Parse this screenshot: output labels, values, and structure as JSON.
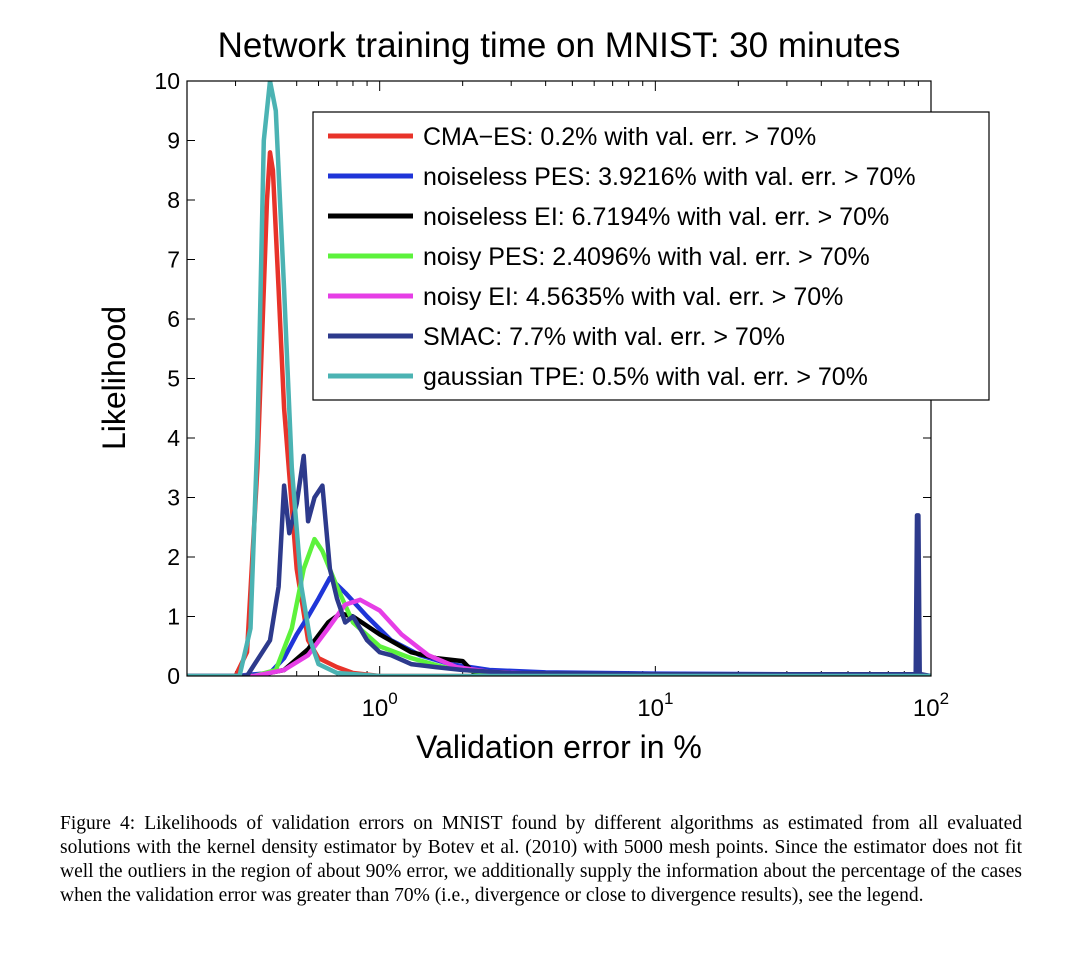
{
  "chart_data": {
    "type": "line",
    "title": "Network training time on MNIST: 30 minutes",
    "xlabel": "Validation error in %",
    "ylabel": "Likelihood",
    "xscale": "log",
    "xlim": [
      0.2,
      100
    ],
    "ylim": [
      0,
      10
    ],
    "xticks": [
      {
        "value": 1,
        "base": "10",
        "exp": "0"
      },
      {
        "value": 10,
        "base": "10",
        "exp": "1"
      },
      {
        "value": 100,
        "base": "10",
        "exp": "2"
      }
    ],
    "yticks": [
      "0",
      "1",
      "2",
      "3",
      "4",
      "5",
      "6",
      "7",
      "8",
      "9",
      "10"
    ],
    "legend_position": "top-right",
    "series": [
      {
        "name": "CMA−ES: 0.2% with val. err. > 70%",
        "color": "#e8332a",
        "x": [
          0.2,
          0.3,
          0.33,
          0.36,
          0.39,
          0.4,
          0.41,
          0.43,
          0.45,
          0.5,
          0.55,
          0.6,
          0.7,
          0.8,
          1.0,
          2.0,
          100
        ],
        "y": [
          0,
          0,
          0.4,
          3.5,
          8.0,
          8.8,
          8.5,
          6.5,
          4.5,
          1.8,
          0.6,
          0.3,
          0.15,
          0.05,
          0,
          0,
          0
        ]
      },
      {
        "name": "noiseless PES: 3.9216% with val. err. > 70%",
        "color": "#1f35d8",
        "x": [
          0.2,
          0.3,
          0.4,
          0.45,
          0.5,
          0.55,
          0.6,
          0.66,
          0.75,
          0.9,
          1.1,
          1.4,
          1.8,
          2.5,
          4,
          10,
          30,
          90,
          100
        ],
        "y": [
          0,
          0,
          0.05,
          0.3,
          0.7,
          1.0,
          1.3,
          1.65,
          1.4,
          1.0,
          0.6,
          0.35,
          0.2,
          0.1,
          0.06,
          0.04,
          0.03,
          0.02,
          0
        ]
      },
      {
        "name": "noiseless EI: 6.7194% with val. err. > 70%",
        "color": "#000000",
        "x": [
          0.2,
          0.35,
          0.45,
          0.55,
          0.65,
          0.72,
          0.8,
          1.0,
          1.3,
          1.6,
          2.0,
          2.2,
          3,
          10,
          100
        ],
        "y": [
          0,
          0,
          0.1,
          0.45,
          0.9,
          1.05,
          1.0,
          0.7,
          0.4,
          0.3,
          0.25,
          0.05,
          0.02,
          0.01,
          0
        ]
      },
      {
        "name": "noisy PES: 2.4096% with val. err. > 70%",
        "color": "#5cf23c",
        "x": [
          0.2,
          0.35,
          0.42,
          0.48,
          0.53,
          0.58,
          0.62,
          0.7,
          0.8,
          1.0,
          1.3,
          1.7,
          2.5,
          10,
          100
        ],
        "y": [
          0,
          0,
          0.1,
          0.8,
          1.8,
          2.3,
          2.1,
          1.5,
          0.9,
          0.5,
          0.3,
          0.15,
          0.05,
          0.02,
          0
        ]
      },
      {
        "name": "noisy EI: 4.5635% with val. err. > 70%",
        "color": "#e63ee6",
        "x": [
          0.2,
          0.35,
          0.45,
          0.55,
          0.65,
          0.75,
          0.85,
          1.0,
          1.2,
          1.5,
          1.9,
          2.5,
          4,
          10,
          100
        ],
        "y": [
          0,
          0,
          0.1,
          0.35,
          0.8,
          1.2,
          1.28,
          1.1,
          0.7,
          0.35,
          0.15,
          0.07,
          0.03,
          0.01,
          0
        ]
      },
      {
        "name": "SMAC: 7.7% with val. err. > 70%",
        "color": "#2d3a8c",
        "x": [
          0.2,
          0.33,
          0.4,
          0.43,
          0.45,
          0.47,
          0.5,
          0.53,
          0.55,
          0.58,
          0.62,
          0.66,
          0.7,
          0.75,
          0.8,
          0.9,
          1.0,
          1.1,
          1.3,
          1.6,
          2.0,
          3,
          10,
          30,
          88,
          89,
          90,
          91,
          92,
          100
        ],
        "y": [
          0,
          0,
          0.6,
          1.5,
          3.2,
          2.4,
          2.9,
          3.7,
          2.6,
          3.0,
          3.2,
          1.8,
          1.3,
          0.9,
          1.0,
          0.6,
          0.4,
          0.35,
          0.2,
          0.15,
          0.1,
          0.05,
          0.03,
          0.03,
          0.03,
          2.7,
          2.7,
          0.03,
          0.03,
          0
        ]
      },
      {
        "name": "gaussian TPE: 0.5% with val. err. > 70%",
        "color": "#4bb3b3",
        "x": [
          0.2,
          0.31,
          0.34,
          0.36,
          0.38,
          0.4,
          0.42,
          0.45,
          0.48,
          0.52,
          0.56,
          0.6,
          0.7,
          1.0,
          100
        ],
        "y": [
          0,
          0,
          0.8,
          4.0,
          9.0,
          10.0,
          9.5,
          6.5,
          3.5,
          1.5,
          0.6,
          0.2,
          0.05,
          0,
          0
        ]
      }
    ]
  },
  "caption": "Figure 4: Likelihoods of validation errors on MNIST found by different algorithms as estimated from all evaluated solutions with the kernel density estimator by Botev et al. (2010) with 5000 mesh points. Since the estimator does not fit well the outliers in the region of about 90% error, we additionally supply the information about the percentage of the cases when the validation error was greater than 70% (i.e., divergence or close to divergence results), see the legend."
}
